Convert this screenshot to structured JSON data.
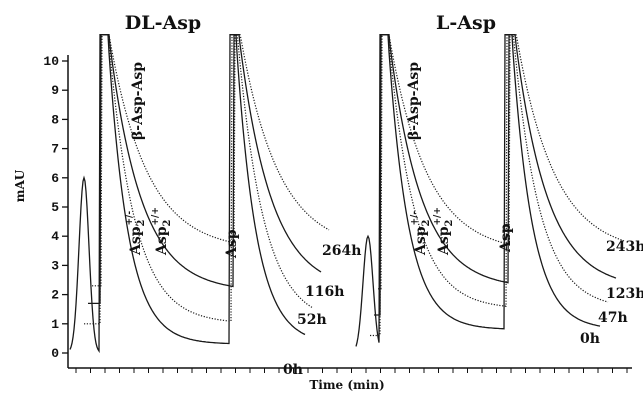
{
  "chart_data": {
    "type": "line",
    "title": "",
    "xlabel": "Time (min)",
    "ylabel": "mAU",
    "ylim": [
      0,
      10
    ],
    "yticks": [
      "0",
      "1",
      "2",
      "3",
      "4",
      "5",
      "6",
      "7",
      "8",
      "9",
      "10"
    ],
    "panels": [
      {
        "title": "DL-Asp",
        "peak_labels": [
          "β-Asp-Asp",
          "Asp",
          "Asp2+/-",
          "Asp2+/+"
        ],
        "series": [
          {
            "name": "0h",
            "offset": 0.0,
            "end_value": 0.3
          },
          {
            "name": "52h",
            "offset": 1.0,
            "end_value": 1.0
          },
          {
            "name": "116h",
            "offset": 1.7,
            "end_value": 2.1
          },
          {
            "name": "264h",
            "offset": 2.3,
            "end_value": 3.5
          }
        ]
      },
      {
        "title": "L-Asp",
        "peak_labels": [
          "β-Asp-Asp",
          "Asp",
          "Asp2+/-",
          "Asp2+/+"
        ],
        "series": [
          {
            "name": "0h",
            "offset": 0.0,
            "end_value": 0.8
          },
          {
            "name": "47h",
            "offset": 0.6,
            "end_value": 1.5
          },
          {
            "name": "123h",
            "offset": 1.3,
            "end_value": 2.2
          },
          {
            "name": "243h",
            "offset": 2.2,
            "end_value": 3.4
          }
        ]
      }
    ]
  }
}
